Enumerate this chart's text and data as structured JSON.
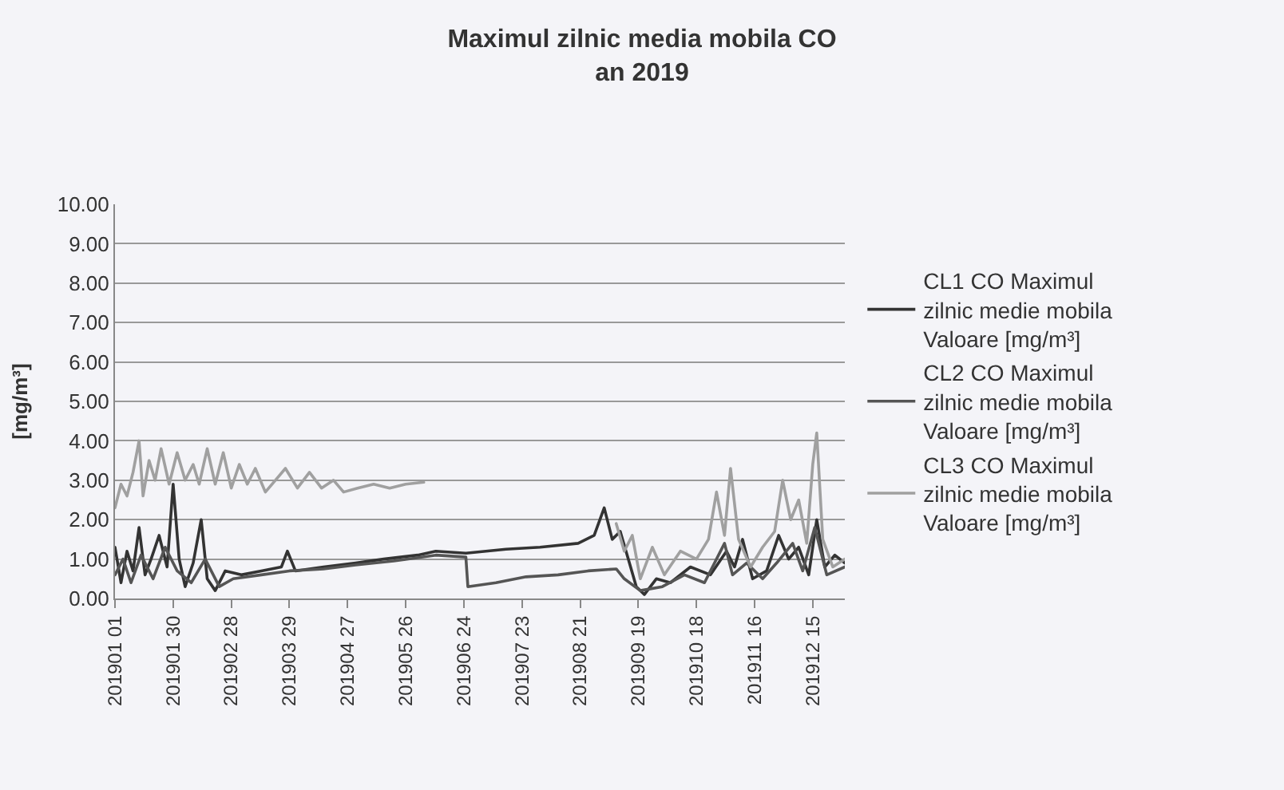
{
  "chart_data": {
    "type": "line",
    "title": "Maximul zilnic media mobila CO\nan 2019",
    "ylabel": "[mg/m³]",
    "xlim": [
      "2019-01-01",
      "2019-12-31"
    ],
    "xticks": [
      {
        "value": "2019-01-01",
        "label": "201901 01"
      },
      {
        "value": "2019-01-30",
        "label": "201901 30"
      },
      {
        "value": "2019-02-28",
        "label": "201902 28"
      },
      {
        "value": "2019-03-29",
        "label": "201903 29"
      },
      {
        "value": "2019-04-27",
        "label": "201904 27"
      },
      {
        "value": "2019-05-26",
        "label": "201905 26"
      },
      {
        "value": "2019-06-24",
        "label": "201906 24"
      },
      {
        "value": "2019-07-23",
        "label": "201907 23"
      },
      {
        "value": "2019-08-21",
        "label": "201908 21"
      },
      {
        "value": "2019-09-19",
        "label": "201909 19"
      },
      {
        "value": "2019-10-18",
        "label": "201910 18"
      },
      {
        "value": "2019-11-16",
        "label": "201911 16"
      },
      {
        "value": "2019-12-15",
        "label": "201912 15"
      }
    ],
    "ylim": [
      0,
      10
    ],
    "yticks": [
      {
        "value": 0,
        "label": "0.00"
      },
      {
        "value": 1,
        "label": "1.00"
      },
      {
        "value": 2,
        "label": "2.00"
      },
      {
        "value": 3,
        "label": "3.00"
      },
      {
        "value": 4,
        "label": "4.00"
      },
      {
        "value": 5,
        "label": "5.00"
      },
      {
        "value": 6,
        "label": "6.00"
      },
      {
        "value": 7,
        "label": "7.00"
      },
      {
        "value": 8,
        "label": "8.00"
      },
      {
        "value": 9,
        "label": "9.00"
      },
      {
        "value": 10,
        "label": "10.00"
      }
    ],
    "grid": "y",
    "legend": "right",
    "marker": "none",
    "line_style": "solid",
    "series": [
      {
        "name": "CL1 CO Maximul zilnic medie mobila Valoare [mg/m³]",
        "color": "#333333",
        "x": [
          "2019-01-01",
          "2019-01-04",
          "2019-01-07",
          "2019-01-10",
          "2019-01-13",
          "2019-01-16",
          "2019-01-19",
          "2019-01-23",
          "2019-01-27",
          "2019-01-30",
          "2019-02-02",
          "2019-02-05",
          "2019-02-09",
          "2019-02-13",
          "2019-02-16",
          "2019-02-20",
          "2019-02-25",
          "2019-03-05",
          "2019-03-15",
          "2019-03-25",
          "2019-03-28",
          "2019-04-01",
          "2019-04-15",
          "2019-05-01",
          "2019-05-15",
          "2019-06-01",
          "2019-06-10",
          "2019-06-25",
          "2019-07-15",
          "2019-08-01",
          "2019-08-20",
          "2019-08-28",
          "2019-09-02",
          "2019-09-06",
          "2019-09-10",
          "2019-09-14",
          "2019-09-18",
          "2019-09-22",
          "2019-09-28",
          "2019-10-05",
          "2019-10-15",
          "2019-10-25",
          "2019-11-02",
          "2019-11-06",
          "2019-11-10",
          "2019-11-15",
          "2019-11-22",
          "2019-11-28",
          "2019-12-03",
          "2019-12-08",
          "2019-12-13",
          "2019-12-17",
          "2019-12-21",
          "2019-12-26",
          "2019-12-31"
        ],
        "values": [
          1.3,
          0.4,
          1.2,
          0.7,
          1.8,
          0.6,
          1.0,
          1.6,
          0.8,
          2.9,
          1.0,
          0.3,
          0.9,
          2.0,
          0.5,
          0.2,
          0.7,
          0.6,
          0.7,
          0.8,
          1.2,
          0.7,
          0.8,
          0.9,
          1.0,
          1.1,
          1.2,
          1.15,
          1.25,
          1.3,
          1.4,
          1.6,
          2.3,
          1.5,
          1.7,
          1.0,
          0.3,
          0.1,
          0.5,
          0.4,
          0.8,
          0.6,
          1.2,
          0.8,
          1.5,
          0.5,
          0.7,
          1.6,
          1.0,
          1.3,
          0.6,
          2.0,
          0.8,
          1.1,
          0.9
        ]
      },
      {
        "name": "CL2 CO Maximul zilnic medie mobila Valoare [mg/m³]",
        "color": "#555555",
        "x": [
          "2019-01-01",
          "2019-01-05",
          "2019-01-09",
          "2019-01-14",
          "2019-01-20",
          "2019-01-26",
          "2019-02-01",
          "2019-02-08",
          "2019-02-15",
          "2019-02-22",
          "2019-03-01",
          "2019-03-15",
          "2019-03-29",
          "2019-04-15",
          "2019-05-01",
          "2019-05-20",
          "2019-06-10",
          "2019-06-25",
          "2019-06-26",
          "2019-07-10",
          "2019-07-25",
          "2019-08-10",
          "2019-08-25",
          "2019-09-08",
          "2019-09-12",
          "2019-09-20",
          "2019-10-01",
          "2019-10-12",
          "2019-10-22",
          "2019-11-01",
          "2019-11-05",
          "2019-11-12",
          "2019-11-20",
          "2019-11-27",
          "2019-12-05",
          "2019-12-10",
          "2019-12-16",
          "2019-12-22",
          "2019-12-31"
        ],
        "values": [
          0.6,
          1.0,
          0.4,
          1.1,
          0.5,
          1.3,
          0.7,
          0.4,
          1.0,
          0.3,
          0.5,
          0.6,
          0.7,
          0.75,
          0.85,
          0.95,
          1.1,
          1.05,
          0.3,
          0.4,
          0.55,
          0.6,
          0.7,
          0.75,
          0.5,
          0.2,
          0.3,
          0.6,
          0.4,
          1.4,
          0.6,
          0.9,
          0.5,
          0.9,
          1.4,
          0.7,
          1.8,
          0.6,
          0.8
        ]
      },
      {
        "name": "CL3 CO Maximul zilnic medie mobila Valoare [mg/m³]",
        "color": "#a0a0a0",
        "x": [
          "2019-01-01",
          "2019-01-04",
          "2019-01-07",
          "2019-01-10",
          "2019-01-13",
          "2019-01-15",
          "2019-01-18",
          "2019-01-21",
          "2019-01-24",
          "2019-01-28",
          "2019-02-01",
          "2019-02-05",
          "2019-02-09",
          "2019-02-12",
          "2019-02-16",
          "2019-02-20",
          "2019-02-24",
          "2019-02-28",
          "2019-03-04",
          "2019-03-08",
          "2019-03-12",
          "2019-03-17",
          "2019-03-22",
          "2019-03-27",
          "2019-04-02",
          "2019-04-08",
          "2019-04-14",
          "2019-04-20",
          "2019-04-25",
          "2019-05-02",
          "2019-05-10",
          "2019-05-18",
          "2019-05-26",
          "2019-06-04",
          "2019-07-15",
          "2019-09-08",
          "2019-09-12",
          "2019-09-16",
          "2019-09-20",
          "2019-09-26",
          "2019-10-02",
          "2019-10-10",
          "2019-10-18",
          "2019-10-24",
          "2019-10-28",
          "2019-11-01",
          "2019-11-04",
          "2019-11-08",
          "2019-11-14",
          "2019-11-20",
          "2019-11-26",
          "2019-11-30",
          "2019-12-04",
          "2019-12-08",
          "2019-12-12",
          "2019-12-15",
          "2019-12-17",
          "2019-12-20",
          "2019-12-25",
          "2019-12-31"
        ],
        "values": [
          2.3,
          2.9,
          2.6,
          3.2,
          4.0,
          2.6,
          3.5,
          3.0,
          3.8,
          2.9,
          3.7,
          3.0,
          3.4,
          2.9,
          3.8,
          2.9,
          3.7,
          2.8,
          3.4,
          2.9,
          3.3,
          2.7,
          3.0,
          3.3,
          2.8,
          3.2,
          2.8,
          3.0,
          2.7,
          2.8,
          2.9,
          2.8,
          2.9,
          2.95,
          null,
          1.9,
          1.2,
          1.6,
          0.5,
          1.3,
          0.6,
          1.2,
          1.0,
          1.5,
          2.7,
          1.6,
          3.3,
          1.5,
          0.8,
          1.3,
          1.7,
          3.0,
          2.0,
          2.5,
          1.4,
          3.4,
          4.2,
          1.5,
          0.8,
          1.0
        ]
      }
    ]
  }
}
